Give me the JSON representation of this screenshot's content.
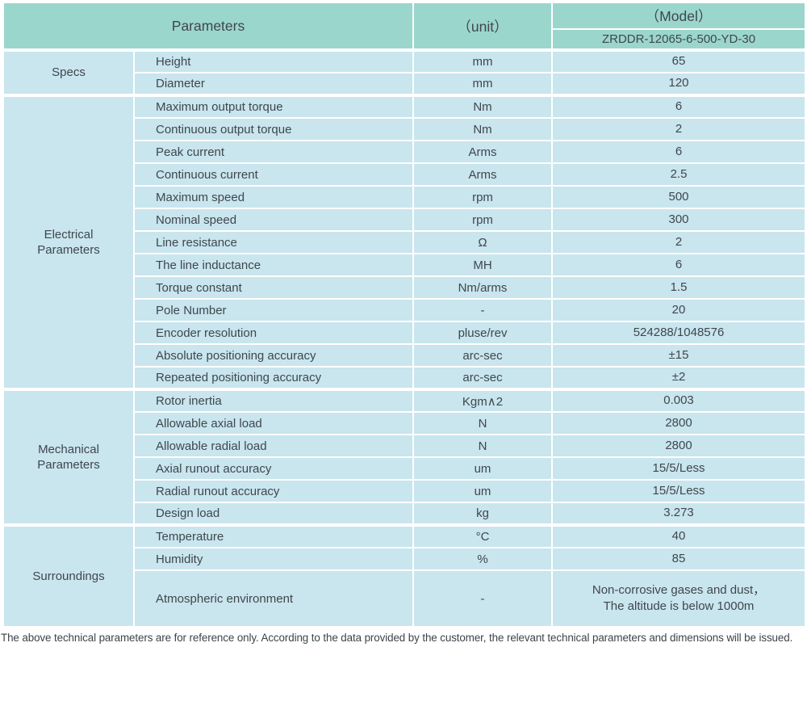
{
  "header": {
    "parameters_label": "Parameters",
    "unit_label": "（unit）",
    "model_label": "（Model）",
    "model_value": "ZRDDR-12065-6-500-YD-30"
  },
  "colors": {
    "header_bg": "#9bd6cc",
    "row_bg": "#c9e5ee",
    "divider": "#ffffff",
    "text": "#3f474d"
  },
  "sections": [
    {
      "name": "Specs",
      "rows": [
        {
          "param": "Height",
          "unit": "mm",
          "value": "65"
        },
        {
          "param": "Diameter",
          "unit": "mm",
          "value": "120"
        }
      ]
    },
    {
      "name": "Electrical\nParameters",
      "rows": [
        {
          "param": "Maximum output torque",
          "unit": "Nm",
          "value": "6"
        },
        {
          "param": "Continuous output torque",
          "unit": "Nm",
          "value": "2"
        },
        {
          "param": "Peak current",
          "unit": "Arms",
          "value": "6"
        },
        {
          "param": "Continuous current",
          "unit": "Arms",
          "value": "2.5"
        },
        {
          "param": "Maximum speed",
          "unit": "rpm",
          "value": "500"
        },
        {
          "param": "Nominal speed",
          "unit": "rpm",
          "value": "300"
        },
        {
          "param": "Line resistance",
          "unit": "Ω",
          "value": "2"
        },
        {
          "param": "The line inductance",
          "unit": "MH",
          "value": "6"
        },
        {
          "param": "Torque constant",
          "unit": "Nm/arms",
          "value": "1.5"
        },
        {
          "param": "Pole Number",
          "unit": "-",
          "value": "20"
        },
        {
          "param": "Encoder resolution",
          "unit": "pluse/rev",
          "value": "524288/1048576"
        },
        {
          "param": "Absolute positioning accuracy",
          "unit": "arc-sec",
          "value": "±15"
        },
        {
          "param": "Repeated positioning accuracy",
          "unit": "arc-sec",
          "value": "±2"
        }
      ]
    },
    {
      "name": "Mechanical\nParameters",
      "rows": [
        {
          "param": "Rotor inertia",
          "unit": "Kgm∧2",
          "value": "0.003"
        },
        {
          "param": "Allowable axial load",
          "unit": "N",
          "value": "2800"
        },
        {
          "param": "Allowable radial load",
          "unit": "N",
          "value": "2800"
        },
        {
          "param": "Axial runout accuracy",
          "unit": "um",
          "value": "15/5/Less"
        },
        {
          "param": "Radial runout accuracy",
          "unit": "um",
          "value": "15/5/Less"
        },
        {
          "param": "Design load",
          "unit": "kg",
          "value": "3.273"
        }
      ]
    },
    {
      "name": "Surroundings",
      "rows": [
        {
          "param": "Temperature",
          "unit": "°C",
          "value": "40"
        },
        {
          "param": "Humidity",
          "unit": "%",
          "value": "85"
        },
        {
          "param": "Atmospheric environment",
          "unit": "-",
          "value": "Non-corrosive gases and dust，\nThe altitude is below 1000m",
          "tall": true
        }
      ]
    }
  ],
  "footer": {
    "note": "The above technical parameters are for reference only. According to the data provided by the customer, the relevant technical parameters and dimensions will be issued."
  }
}
